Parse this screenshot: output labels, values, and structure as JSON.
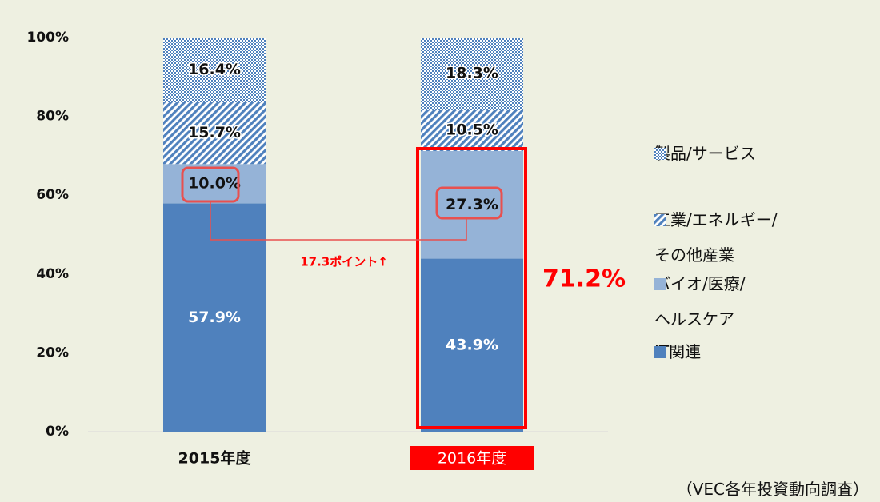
{
  "chart_data": {
    "type": "stacked-bar",
    "categories": [
      "2015年度",
      "2016年度"
    ],
    "series": [
      {
        "name": "IT関連",
        "color": "#4f81bd",
        "values": [
          57.9,
          43.9
        ],
        "value_labels": [
          "57.9%",
          "43.9%"
        ]
      },
      {
        "name": "バイオ/医療/\nヘルスケア",
        "color": "#95b3d7",
        "values": [
          10.0,
          27.3
        ],
        "value_labels": [
          "10.0%",
          "27.3%"
        ]
      },
      {
        "name": "工業/エネルギー/\nその他産業",
        "color": "#4f81bd",
        "pattern": "diagonal",
        "values": [
          15.7,
          10.5
        ],
        "value_labels": [
          "15.7%",
          "10.5%"
        ]
      },
      {
        "name": "製品/サービス",
        "color": "#4f81bd",
        "pattern": "checker",
        "values": [
          16.4,
          18.3
        ],
        "value_labels": [
          "16.4%",
          "18.3%"
        ]
      }
    ],
    "ylim": [
      0,
      100
    ],
    "yticks": [
      {
        "value": 0,
        "label": "0%"
      },
      {
        "value": 20,
        "label": "20%"
      },
      {
        "value": 40,
        "label": "40%"
      },
      {
        "value": 60,
        "label": "60%"
      },
      {
        "value": 80,
        "label": "80%"
      },
      {
        "value": 100,
        "label": "100%"
      }
    ],
    "grid": false,
    "annotations": [
      "17.3ポイント↑",
      "71.2%"
    ],
    "source": "（VEC各年投資動向調査）"
  }
}
